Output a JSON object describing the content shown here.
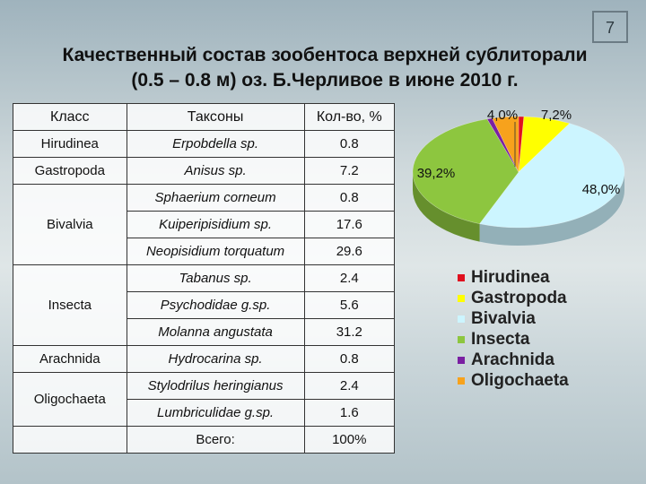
{
  "slide_number": "7",
  "title": {
    "line1": "Качественный состав зообентоса верхней сублиторали",
    "line2": "(0.5 – 0.8 м) оз. Б.Черливое в июне 2010 г."
  },
  "table": {
    "headers": [
      "Класс",
      "Таксоны",
      "Кол-во, %"
    ],
    "groups": [
      {
        "class": "Hirudinea",
        "rows": [
          {
            "taxon": "Erpobdella sp.",
            "qty": "0.8"
          }
        ]
      },
      {
        "class": "Gastropoda",
        "rows": [
          {
            "taxon": "Anisus sp.",
            "qty": "7.2"
          }
        ]
      },
      {
        "class": "Bivalvia",
        "rows": [
          {
            "taxon": "Sphaerium corneum",
            "qty": "0.8"
          },
          {
            "taxon": "Kuiperipisidium sp.",
            "qty": "17.6"
          },
          {
            "taxon": "Neopisidium torquatum",
            "qty": "29.6"
          }
        ]
      },
      {
        "class": "Insecta",
        "rows": [
          {
            "taxon": "Tabanus sp.",
            "qty": "2.4"
          },
          {
            "taxon": "Psychodidae g.sp.",
            "qty": "5.6"
          },
          {
            "taxon": "Molanna angustata",
            "qty": "31.2"
          }
        ]
      },
      {
        "class": "Arachnida",
        "rows": [
          {
            "taxon": "Hydrocarina sp.",
            "qty": "0.8"
          }
        ]
      },
      {
        "class": "Oligochaeta",
        "rows": [
          {
            "taxon": "Stylodrilus heringianus",
            "qty": "2.4"
          },
          {
            "taxon": "Lumbriculidae g.sp.",
            "qty": "1.6"
          }
        ]
      }
    ],
    "total_label": "Всего:",
    "total_value": "100%"
  },
  "chart_data": {
    "type": "pie",
    "categories": [
      "Hirudinea",
      "Gastropoda",
      "Bivalvia",
      "Insecta",
      "Arachnida",
      "Oligochaeta"
    ],
    "values": [
      0.8,
      7.2,
      48.0,
      39.2,
      0.8,
      4.0
    ],
    "labels": [
      "",
      "7,2%",
      "48,0%",
      "39,2%",
      "",
      "4,0%"
    ],
    "colors": [
      "#e0101f",
      "#ffff00",
      "#ccf5ff",
      "#8dc63f",
      "#7a1fa2",
      "#f7a21c"
    ],
    "legend_position": "bottom",
    "style": "3d"
  }
}
